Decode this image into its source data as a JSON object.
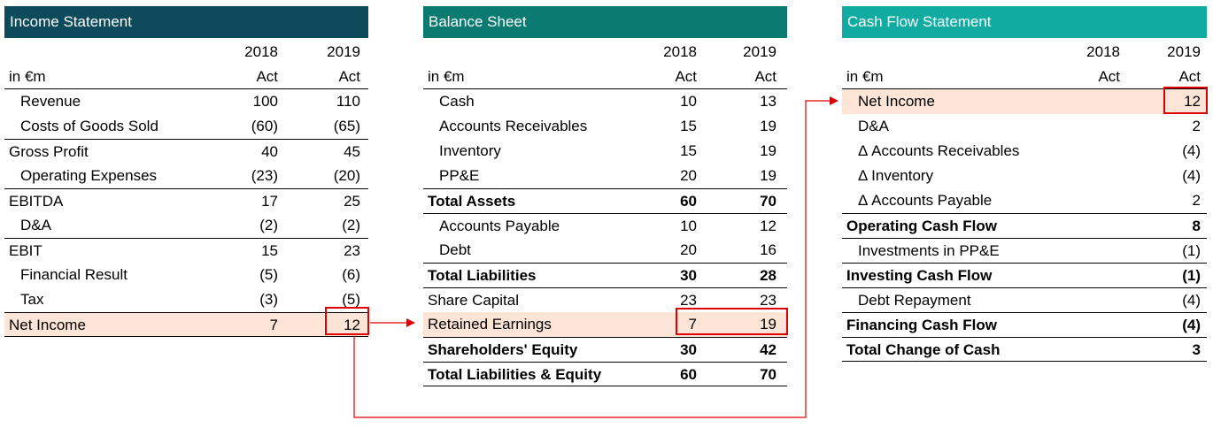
{
  "colors": {
    "income_header": "#0d4a5c",
    "balance_header": "#0b7b72",
    "cashflow_header": "#11aba2",
    "highlight": "#fce4d6",
    "arrow": "#e00000"
  },
  "income": {
    "title": "Income Statement",
    "years": [
      "2018",
      "2019"
    ],
    "unit": "in €m",
    "status": [
      "Act",
      "Act"
    ],
    "rows": [
      {
        "label": "Revenue",
        "v1": "100",
        "v2": "110"
      },
      {
        "label": "Costs of Goods Sold",
        "v1": "(60)",
        "v2": "(65)"
      },
      {
        "label": "Gross Profit",
        "v1": "40",
        "v2": "45"
      },
      {
        "label": "Operating Expenses",
        "v1": "(23)",
        "v2": "(20)"
      },
      {
        "label": "EBITDA",
        "v1": "17",
        "v2": "25"
      },
      {
        "label": "D&A",
        "v1": "(2)",
        "v2": "(2)"
      },
      {
        "label": "EBIT",
        "v1": "15",
        "v2": "23"
      },
      {
        "label": "Financial Result",
        "v1": "(5)",
        "v2": "(6)"
      },
      {
        "label": "Tax",
        "v1": "(3)",
        "v2": "(5)"
      },
      {
        "label": "Net Income",
        "v1": "7",
        "v2": "12"
      }
    ]
  },
  "balance": {
    "title": "Balance Sheet",
    "years": [
      "2018",
      "2019"
    ],
    "unit": "in €m",
    "status": [
      "Act",
      "Act"
    ],
    "rows": [
      {
        "label": "Cash",
        "v1": "10",
        "v2": "13"
      },
      {
        "label": "Accounts Receivables",
        "v1": "15",
        "v2": "19"
      },
      {
        "label": "Inventory",
        "v1": "15",
        "v2": "19"
      },
      {
        "label": "PP&E",
        "v1": "20",
        "v2": "19"
      },
      {
        "label": "Total Assets",
        "v1": "60",
        "v2": "70"
      },
      {
        "label": "Accounts Payable",
        "v1": "10",
        "v2": "12"
      },
      {
        "label": "Debt",
        "v1": "20",
        "v2": "16"
      },
      {
        "label": "Total Liabilities",
        "v1": "30",
        "v2": "28"
      },
      {
        "label": "Share Capital",
        "v1": "23",
        "v2": "23"
      },
      {
        "label": "Retained Earnings",
        "v1": "7",
        "v2": "19"
      },
      {
        "label": "Shareholders' Equity",
        "v1": "30",
        "v2": "42"
      },
      {
        "label": "Total Liabilities & Equity",
        "v1": "60",
        "v2": "70"
      }
    ]
  },
  "cashflow": {
    "title": "Cash Flow Statement",
    "years": [
      "2018",
      "2019"
    ],
    "unit": "in €m",
    "status": [
      "Act",
      "Act"
    ],
    "rows": [
      {
        "label": "Net Income",
        "v1": "",
        "v2": "12"
      },
      {
        "label": "D&A",
        "v1": "",
        "v2": "2"
      },
      {
        "label": "Δ Accounts Receivables",
        "v1": "",
        "v2": "(4)"
      },
      {
        "label": "Δ Inventory",
        "v1": "",
        "v2": "(4)"
      },
      {
        "label": "Δ Accounts Payable",
        "v1": "",
        "v2": "2"
      },
      {
        "label": "Operating Cash Flow",
        "v1": "",
        "v2": "8"
      },
      {
        "label": "Investments in PP&E",
        "v1": "",
        "v2": "(1)"
      },
      {
        "label": "Investing Cash Flow",
        "v1": "",
        "v2": "(1)"
      },
      {
        "label": "Debt Repayment",
        "v1": "",
        "v2": "(4)"
      },
      {
        "label": "Financing Cash Flow",
        "v1": "",
        "v2": "(4)"
      },
      {
        "label": "Total Change of Cash",
        "v1": "",
        "v2": "3"
      }
    ]
  }
}
